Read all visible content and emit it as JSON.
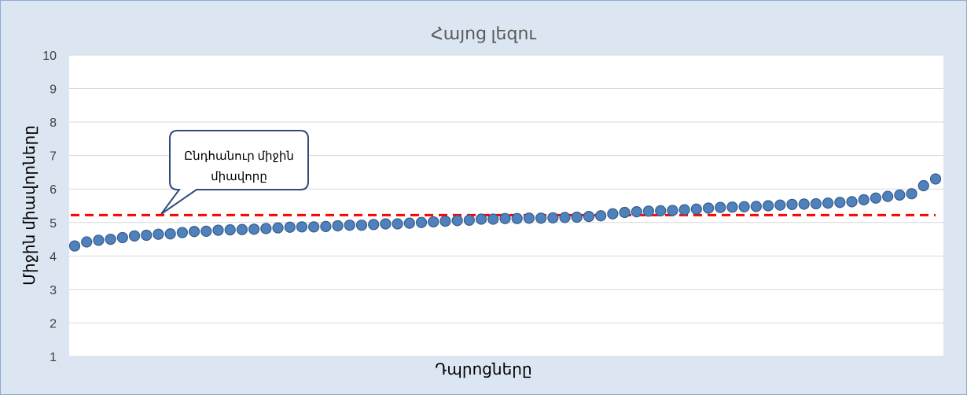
{
  "chart_data": {
    "type": "scatter",
    "title": "Հայոց լեզու",
    "xlabel": "Դպրոցները",
    "ylabel": "Միջին միավորները",
    "ylim": [
      1,
      10
    ],
    "yticks": [
      1,
      2,
      3,
      4,
      5,
      6,
      7,
      8,
      9,
      10
    ],
    "grid": true,
    "legend": "none",
    "series": [
      {
        "values": [
          4.3,
          4.42,
          4.47,
          4.5,
          4.55,
          4.6,
          4.62,
          4.65,
          4.66,
          4.7,
          4.73,
          4.74,
          4.77,
          4.78,
          4.79,
          4.8,
          4.82,
          4.84,
          4.86,
          4.87,
          4.87,
          4.88,
          4.9,
          4.92,
          4.92,
          4.94,
          4.96,
          4.96,
          4.98,
          5.0,
          5.02,
          5.04,
          5.06,
          5.07,
          5.1,
          5.1,
          5.12,
          5.12,
          5.13,
          5.13,
          5.14,
          5.15,
          5.16,
          5.18,
          5.2,
          5.26,
          5.3,
          5.32,
          5.34,
          5.35,
          5.36,
          5.38,
          5.4,
          5.43,
          5.45,
          5.46,
          5.47,
          5.48,
          5.5,
          5.52,
          5.54,
          5.55,
          5.56,
          5.58,
          5.6,
          5.62,
          5.68,
          5.73,
          5.78,
          5.82,
          5.86,
          6.1,
          6.3
        ],
        "color": "#4f81bd"
      }
    ],
    "reference_line": {
      "value": 5.22,
      "color": "#ff0000",
      "style": "dashed"
    },
    "annotation": {
      "text_lines": [
        "Ընդհանուր միջին",
        "միավորը"
      ]
    }
  }
}
